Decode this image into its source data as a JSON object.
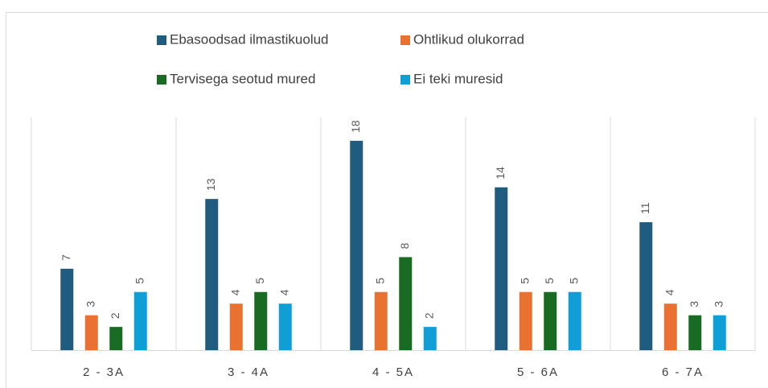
{
  "chart_data": {
    "type": "bar",
    "categories": [
      "2 - 3A",
      "3 - 4A",
      "4 - 5A",
      "5 - 6A",
      "6 - 7A"
    ],
    "series": [
      {
        "name": "Ebasoodsad ilmastikuolud",
        "color": "#1f5c80",
        "values": [
          7,
          13,
          18,
          14,
          11
        ]
      },
      {
        "name": "Ohtlikud olukorrad",
        "color": "#e97132",
        "values": [
          3,
          4,
          5,
          5,
          4
        ]
      },
      {
        "name": "Tervisega seotud mured",
        "color": "#196b24",
        "values": [
          2,
          5,
          8,
          5,
          3
        ]
      },
      {
        "name": "Ei teki muresid",
        "color": "#0f9ed5",
        "values": [
          5,
          4,
          2,
          5,
          3
        ]
      }
    ],
    "ylim": [
      0,
      20
    ]
  }
}
